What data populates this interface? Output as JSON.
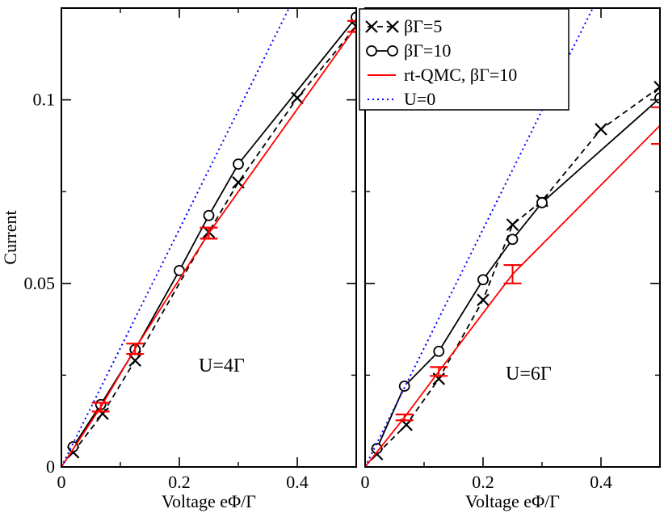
{
  "figure": {
    "ylabel": "Current",
    "colors": {
      "cross": "#000000",
      "circle": "#000000",
      "qmc": "#ff0000",
      "free": "#0000ff",
      "axes": "#000000"
    }
  },
  "legend": {
    "placement": "top-left of right panel",
    "entries": [
      {
        "label": "βΓ=5",
        "series": "cross"
      },
      {
        "label": "βΓ=10",
        "series": "circle"
      },
      {
        "label": "rt-QMC, βΓ=10",
        "series": "qmc"
      },
      {
        "label": "U=0",
        "series": "free"
      }
    ]
  },
  "chart_data": [
    {
      "type": "line",
      "panel": "left",
      "annotation": "U=4Γ",
      "xlabel": "Voltage eΦ/Γ",
      "ylabel": "Current",
      "xlim": [
        0,
        0.5
      ],
      "ylim": [
        0,
        0.125
      ],
      "xticks": [
        0,
        0.2,
        0.4
      ],
      "xtick_labels": [
        "0",
        "0.2",
        "0.4"
      ],
      "yticks": [
        0,
        0.05,
        0.1
      ],
      "ytick_labels": [
        "0",
        "0.05",
        "0.1"
      ],
      "series": [
        {
          "name": "βΓ=5",
          "style": "cross-dashed",
          "x": [
            0.02,
            0.07,
            0.125,
            0.25,
            0.3,
            0.4,
            0.5
          ],
          "y": [
            0.004,
            0.0145,
            0.029,
            0.064,
            0.0775,
            0.1005,
            0.12
          ]
        },
        {
          "name": "βΓ=10",
          "style": "circle-solid",
          "x": [
            0.02,
            0.0667,
            0.125,
            0.2,
            0.25,
            0.3,
            0.5
          ],
          "y": [
            0.0055,
            0.017,
            0.032,
            0.0535,
            0.0685,
            0.0825,
            0.1225
          ]
        },
        {
          "name": "rt-QMC, βΓ=10",
          "style": "red-errorbar",
          "x": [
            0.0,
            0.0667,
            0.125,
            0.25,
            0.5
          ],
          "y": [
            0.0,
            0.0163,
            0.0322,
            0.0637,
            0.12
          ],
          "err": [
            0.0,
            0.0012,
            0.0014,
            0.0015,
            0.0015
          ]
        },
        {
          "name": "U=0",
          "style": "blue-dotted",
          "x": [
            0.0,
            0.4
          ],
          "y": [
            0.0,
            0.1295
          ]
        }
      ]
    },
    {
      "type": "line",
      "panel": "right",
      "annotation": "U=6Γ",
      "xlabel": "Voltage eΦ/Γ",
      "ylabel": "",
      "xlim": [
        0,
        0.5
      ],
      "ylim": [
        0,
        0.125
      ],
      "xticks": [
        0,
        0.2,
        0.4
      ],
      "xtick_labels": [
        "0",
        "0.2",
        "0.4"
      ],
      "yticks": [
        0,
        0.05,
        0.1
      ],
      "ytick_labels": [
        "",
        "",
        ""
      ],
      "series": [
        {
          "name": "βΓ=5",
          "style": "cross-dashed",
          "x": [
            0.02,
            0.07,
            0.125,
            0.2,
            0.25,
            0.3,
            0.4,
            0.5
          ],
          "y": [
            0.0035,
            0.0115,
            0.024,
            0.0455,
            0.066,
            0.0725,
            0.092,
            0.1035
          ]
        },
        {
          "name": "βΓ=10",
          "style": "circle-solid",
          "x": [
            0.02,
            0.0667,
            0.125,
            0.2,
            0.25,
            0.3,
            0.5
          ],
          "y": [
            0.005,
            0.022,
            0.0315,
            0.051,
            0.062,
            0.072,
            0.1005
          ]
        },
        {
          "name": "rt-QMC, βΓ=10",
          "style": "red-errorbar",
          "x": [
            0.0,
            0.0667,
            0.125,
            0.25,
            0.5
          ],
          "y": [
            0.0,
            0.0135,
            0.026,
            0.0525,
            0.093
          ],
          "err": [
            0.0,
            0.0008,
            0.0012,
            0.0025,
            0.005
          ]
        },
        {
          "name": "U=0",
          "style": "blue-dotted",
          "x": [
            0.0,
            0.4
          ],
          "y": [
            0.0,
            0.1295
          ]
        }
      ]
    }
  ]
}
